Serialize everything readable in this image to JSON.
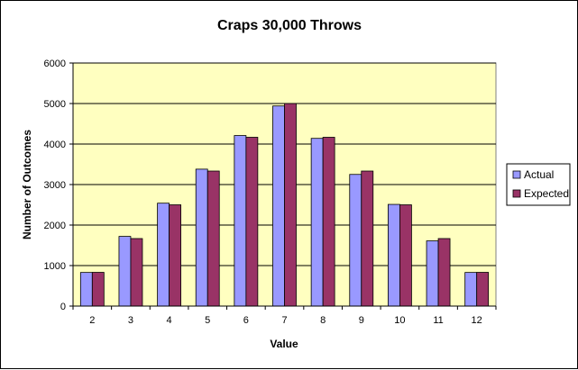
{
  "chart_data": {
    "type": "bar",
    "title": "Craps 30,000 Throws",
    "xlabel": "Value",
    "ylabel": "Number of Outcomes",
    "categories": [
      "2",
      "3",
      "4",
      "5",
      "6",
      "7",
      "8",
      "9",
      "10",
      "11",
      "12"
    ],
    "series": [
      {
        "name": "Actual",
        "values": [
          830,
          1720,
          2540,
          3380,
          4210,
          4940,
          4140,
          3250,
          2510,
          1610,
          830
        ],
        "color": "#9999ff"
      },
      {
        "name": "Expected",
        "values": [
          833,
          1667,
          2500,
          3333,
          4167,
          5000,
          4167,
          3333,
          2500,
          1667,
          833
        ],
        "color": "#993366"
      }
    ],
    "ylim": [
      0,
      6000
    ],
    "yticks": [
      0,
      1000,
      2000,
      3000,
      4000,
      5000,
      6000
    ],
    "grid": true,
    "legend_position": "right",
    "plot_background": "#ffffc0"
  }
}
